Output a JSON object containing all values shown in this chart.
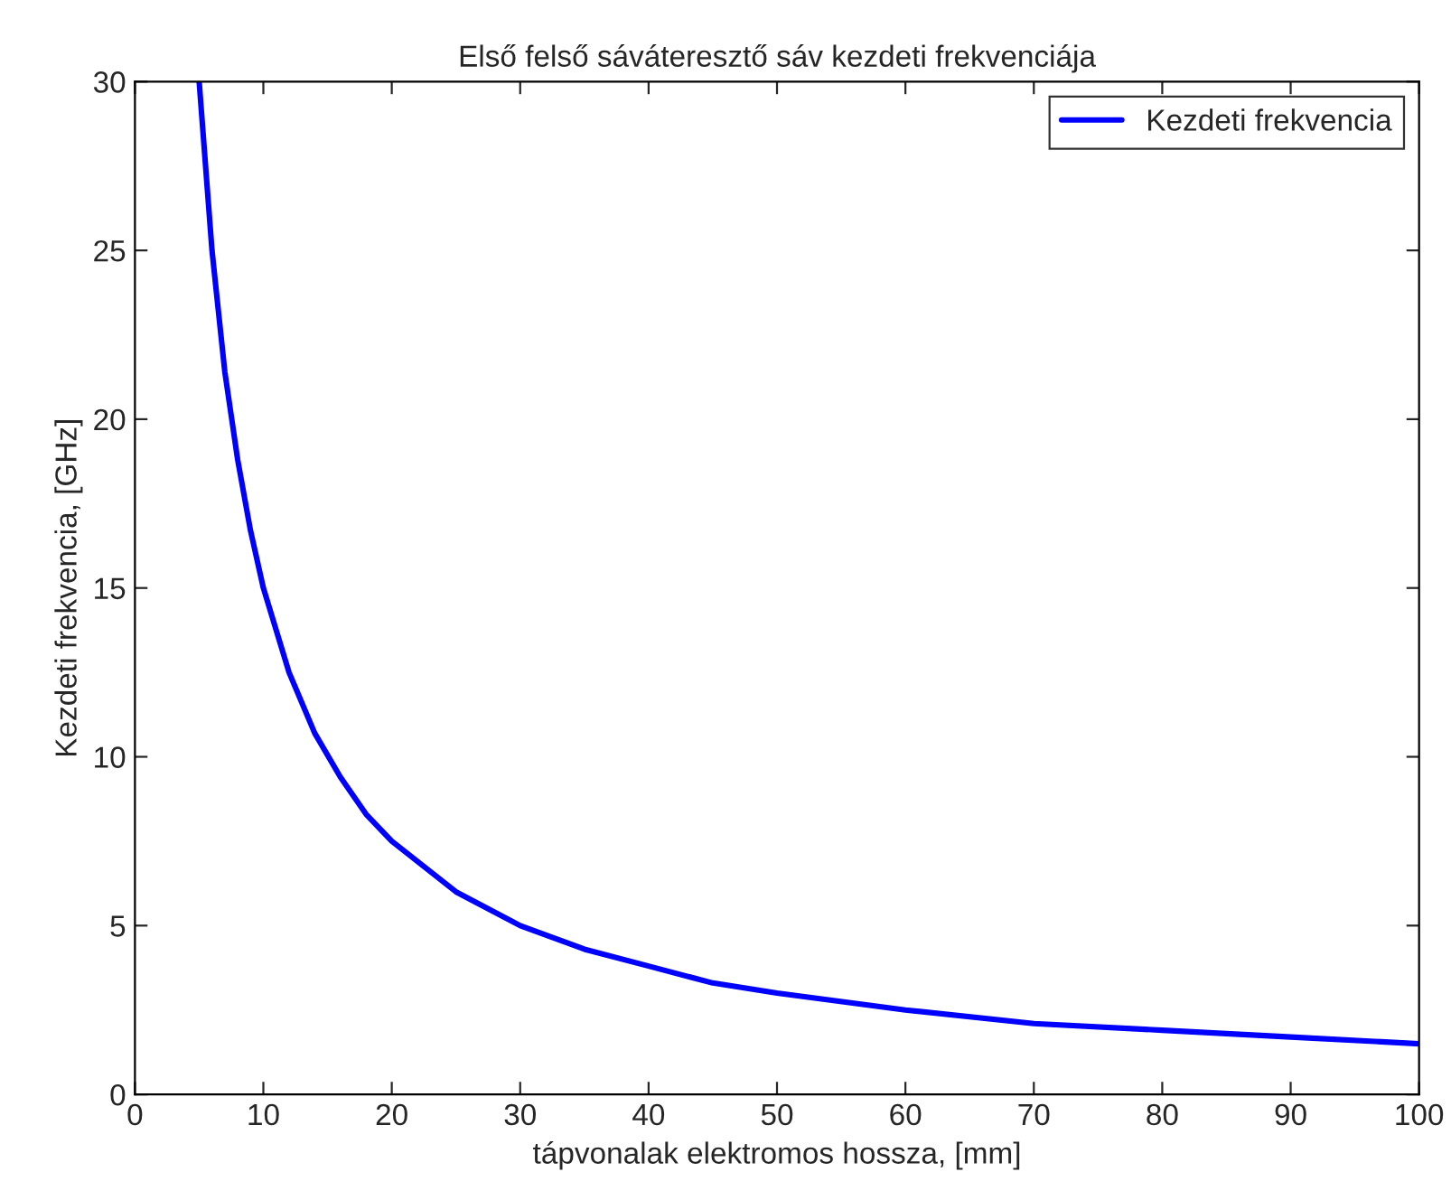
{
  "chart_data": {
    "type": "line",
    "title": "Első felső sáváteresztő sáv kezdeti frekvenciája",
    "xlabel": "tápvonalak elektromos hossza, [mm]",
    "ylabel": "Kezdeti frekvencia, [GHz]",
    "series": [
      {
        "name": "Kezdeti frekvencia",
        "color": "#0000ff",
        "x": [
          5,
          6,
          7,
          8,
          9,
          10,
          12,
          14,
          16,
          18,
          20,
          25,
          30,
          35,
          40,
          45,
          50,
          60,
          70,
          80,
          90,
          100
        ],
        "values": [
          30,
          25,
          21.4,
          18.8,
          16.7,
          15,
          12.5,
          10.7,
          9.4,
          8.3,
          7.5,
          6,
          5,
          4.3,
          3.8,
          3.3,
          3,
          2.5,
          2.1,
          1.9,
          1.7,
          1.5
        ]
      }
    ],
    "xlim": [
      0,
      100
    ],
    "xticks": [
      0,
      10,
      20,
      30,
      40,
      50,
      60,
      70,
      80,
      90,
      100
    ],
    "ylim": [
      0,
      30
    ],
    "yticks": [
      0,
      5,
      10,
      15,
      20,
      25,
      30
    ],
    "grid": false,
    "legend": "top right",
    "marker": "none",
    "line_style": "solid"
  }
}
